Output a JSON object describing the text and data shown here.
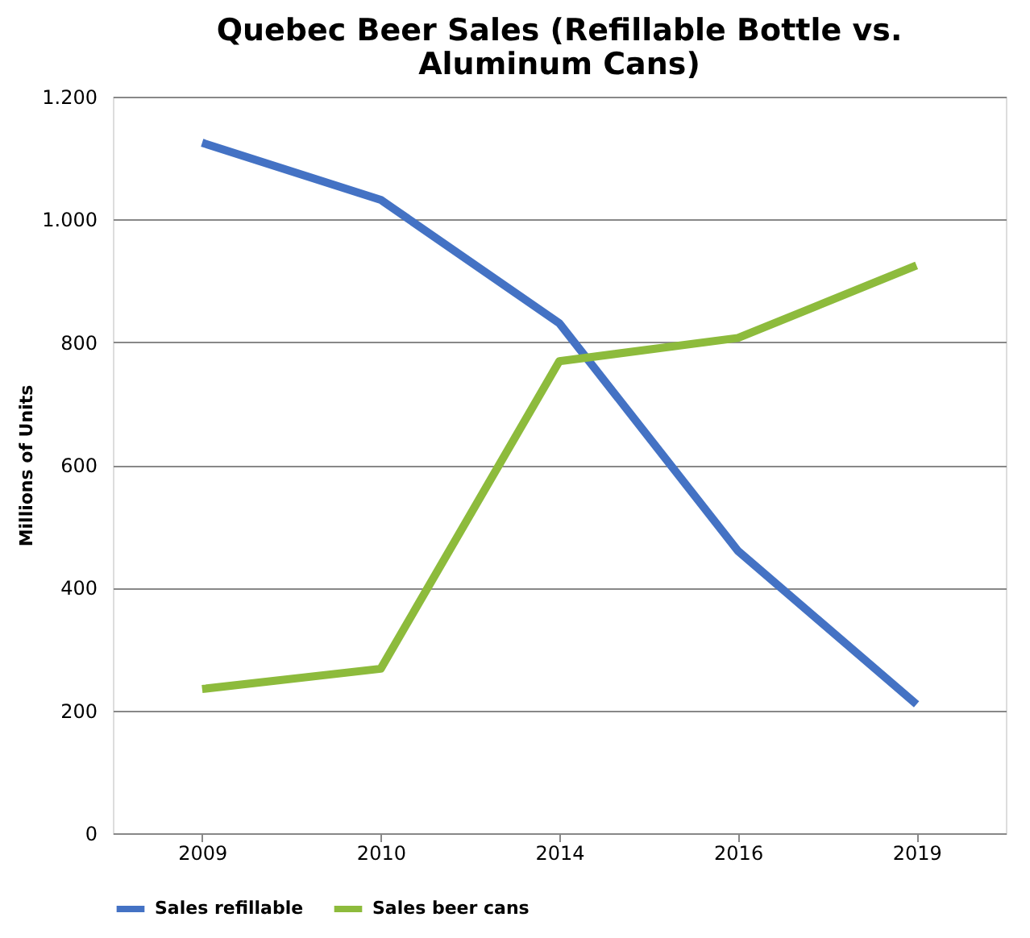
{
  "chart_data": {
    "type": "line",
    "title": "Quebec Beer Sales (Refillable Bottle vs. Aluminum Cans)",
    "ylabel": "Millions of Units",
    "categories": [
      "2009",
      "2010",
      "2014",
      "2016",
      "2019"
    ],
    "series": [
      {
        "name": "Sales refillable",
        "color": "#4472c4",
        "values": [
          1125,
          1032,
          831,
          460,
          210
        ]
      },
      {
        "name": "Sales beer cans",
        "color": "#8dbb3c",
        "values": [
          235,
          268,
          769,
          807,
          925
        ]
      }
    ],
    "ylim": [
      0,
      1200
    ],
    "yticks": [
      0,
      200,
      400,
      600,
      800,
      {
        "value": 1000,
        "label": "1.000"
      },
      {
        "value": 1200,
        "label": "1.200"
      }
    ],
    "grid": "y",
    "legend": "bottom",
    "marker": "none",
    "line_style": "solid"
  }
}
